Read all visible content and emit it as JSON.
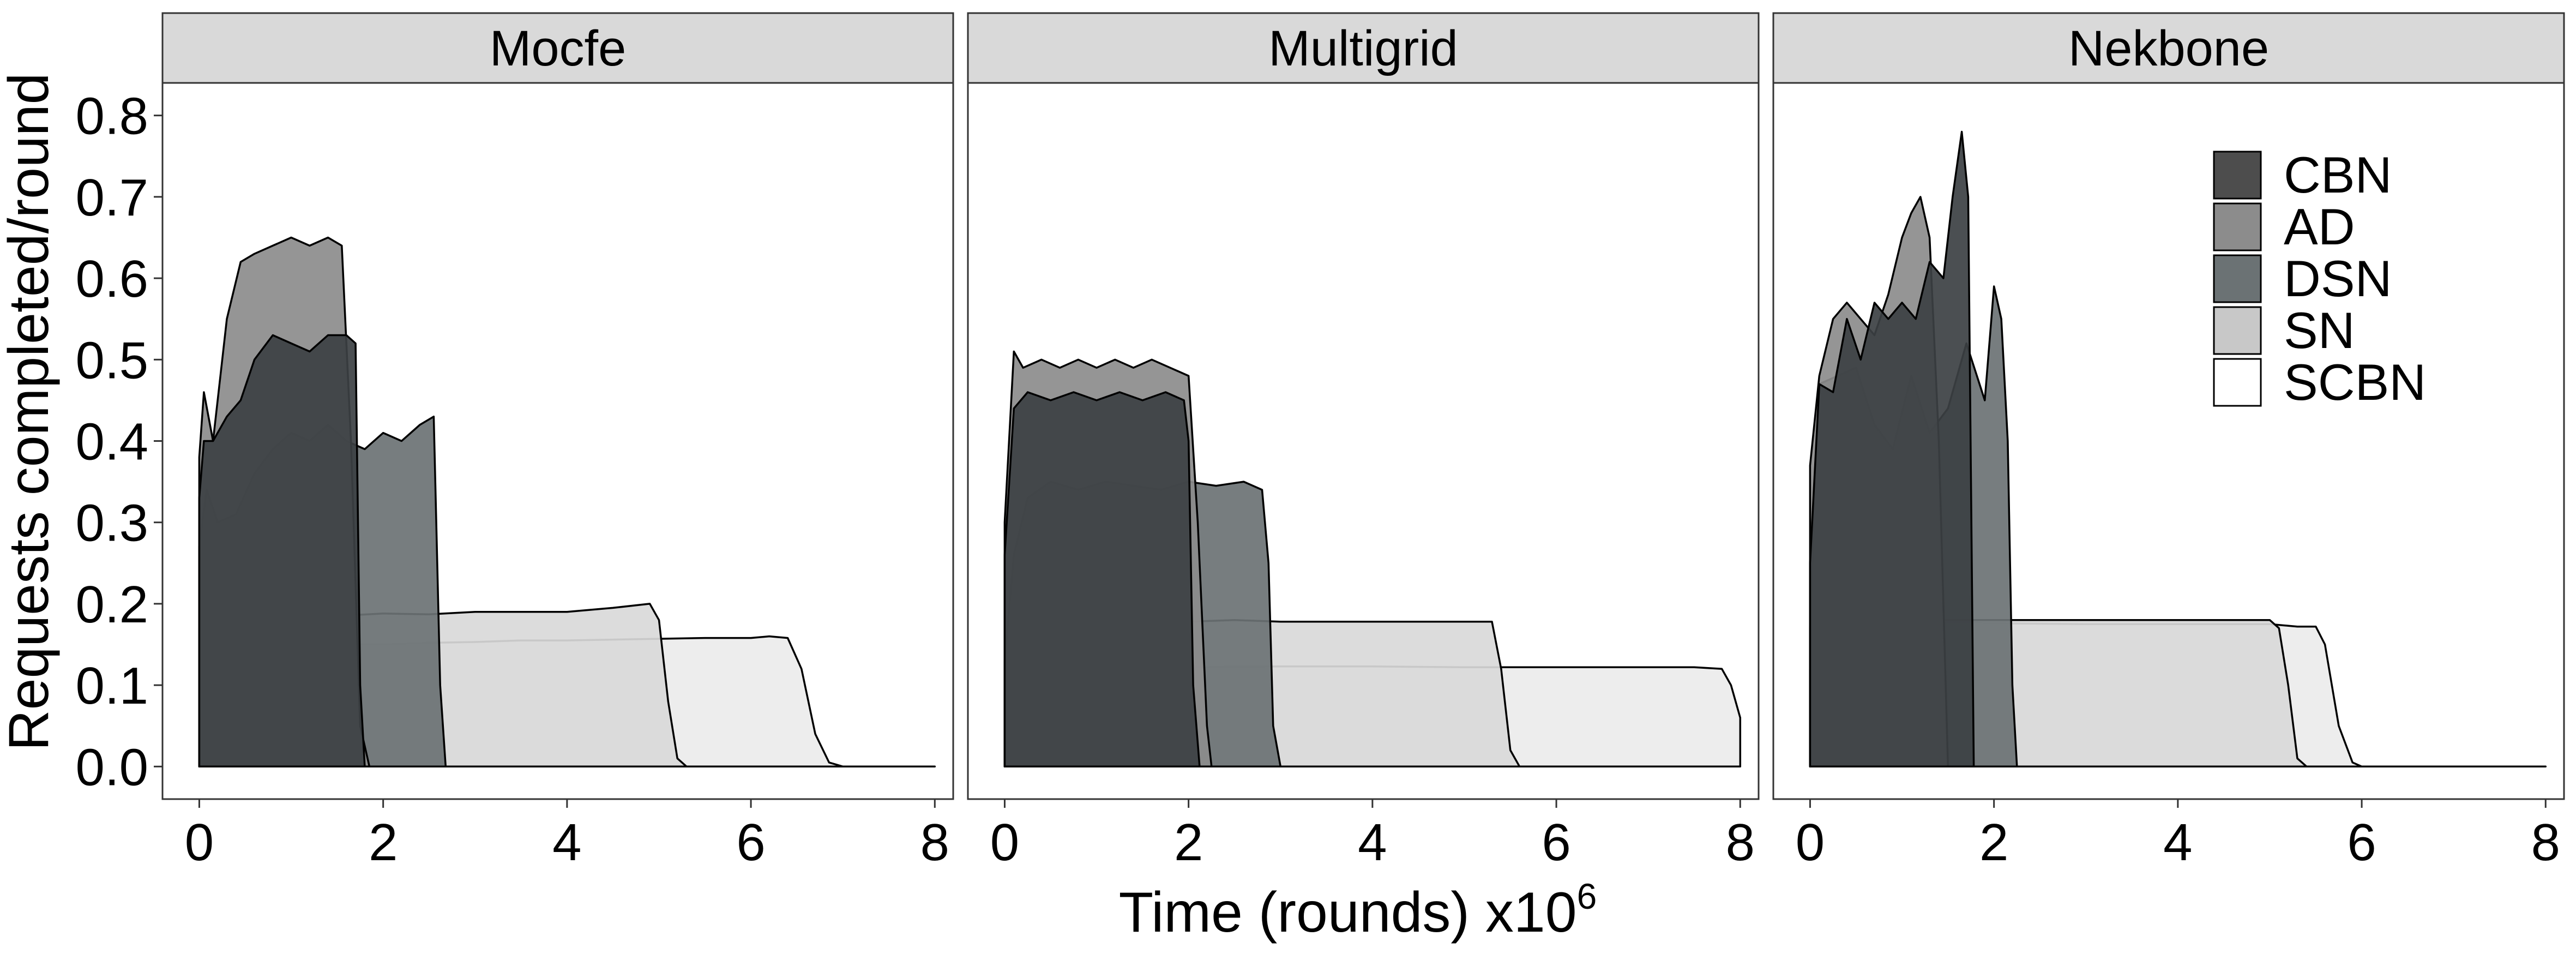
{
  "chart_data": {
    "type": "area",
    "xlabel": "Time (rounds) x10",
    "xlabel_superscript": "6",
    "ylabel": "Requests completed/round",
    "xlim": [
      -0.4,
      8.2
    ],
    "ylim": [
      -0.04,
      0.84
    ],
    "x_ticks": [
      "0",
      "2",
      "4",
      "6",
      "8"
    ],
    "y_ticks": [
      "0.0",
      "0.1",
      "0.2",
      "0.3",
      "0.4",
      "0.5",
      "0.6",
      "0.7",
      "0.8"
    ],
    "grid": false,
    "legend": {
      "placement": "top-right (inside Nekbone panel)",
      "entries": [
        {
          "name": "CBN",
          "fill": "#4d4d4d"
        },
        {
          "name": "AD",
          "fill": "#8c8c8c"
        },
        {
          "name": "DSN",
          "fill": "#6b7274"
        },
        {
          "name": "SN",
          "fill": "#c8c8c8"
        },
        {
          "name": "SCBN",
          "fill": "#ffffff"
        }
      ]
    },
    "panels": [
      {
        "title": "Mocfe",
        "series": [
          {
            "name": "SCBN",
            "fill": "#ebebeb",
            "stroke": "#000000",
            "x": [
              0,
              0.1,
              0.4,
              0.8,
              1.2,
              1.6,
              2,
              2.5,
              3,
              3.5,
              4,
              4.5,
              5,
              5.5,
              6,
              6.2,
              6.4,
              6.55,
              6.7,
              6.85,
              7,
              7.5,
              8
            ],
            "y": [
              0.14,
              0.17,
              0.14,
              0.15,
              0.145,
              0.15,
              0.15,
              0.152,
              0.153,
              0.155,
              0.155,
              0.156,
              0.157,
              0.158,
              0.158,
              0.16,
              0.158,
              0.12,
              0.04,
              0.005,
              0,
              0,
              0
            ]
          },
          {
            "name": "SN",
            "fill": "#d9d9d9",
            "stroke": "#000000",
            "x": [
              0,
              0.1,
              0.3,
              0.6,
              1,
              1.5,
              2,
              2.5,
              3,
              3.5,
              4,
              4.5,
              4.9,
              5.0,
              5.1,
              5.2,
              5.3
            ],
            "y": [
              0.17,
              0.21,
              0.19,
              0.18,
              0.19,
              0.185,
              0.188,
              0.187,
              0.19,
              0.19,
              0.19,
              0.195,
              0.2,
              0.18,
              0.08,
              0.01,
              0
            ]
          },
          {
            "name": "DSN",
            "fill": "#6b7274",
            "stroke": "#000000",
            "x": [
              0,
              0.08,
              0.2,
              0.4,
              0.6,
              0.8,
              1,
              1.2,
              1.4,
              1.6,
              1.8,
              2,
              2.2,
              2.4,
              2.55,
              2.62,
              2.68
            ],
            "y": [
              0.27,
              0.34,
              0.3,
              0.31,
              0.36,
              0.39,
              0.41,
              0.4,
              0.42,
              0.4,
              0.39,
              0.41,
              0.4,
              0.42,
              0.43,
              0.1,
              0
            ]
          },
          {
            "name": "AD",
            "fill": "#8c8c8c",
            "stroke": "#000000",
            "x": [
              0,
              0.05,
              0.15,
              0.3,
              0.45,
              0.6,
              0.8,
              1,
              1.2,
              1.4,
              1.55,
              1.65,
              1.75,
              1.85
            ],
            "y": [
              0.38,
              0.46,
              0.4,
              0.55,
              0.62,
              0.63,
              0.64,
              0.65,
              0.64,
              0.65,
              0.64,
              0.4,
              0.05,
              0
            ]
          },
          {
            "name": "CBN",
            "fill": "#3c4043",
            "stroke": "#000000",
            "x": [
              0,
              0.05,
              0.15,
              0.3,
              0.45,
              0.6,
              0.8,
              1,
              1.2,
              1.4,
              1.6,
              1.7,
              1.75,
              1.8
            ],
            "y": [
              0.33,
              0.4,
              0.4,
              0.43,
              0.45,
              0.5,
              0.53,
              0.52,
              0.51,
              0.53,
              0.53,
              0.52,
              0.1,
              0
            ]
          }
        ]
      },
      {
        "title": "Multigrid",
        "series": [
          {
            "name": "SCBN",
            "fill": "#ebebeb",
            "stroke": "#000000",
            "x": [
              0,
              0.1,
              0.3,
              0.6,
              1,
              2,
              3,
              4,
              5,
              6,
              7,
              7.5,
              7.8,
              7.9,
              8
            ],
            "y": [
              0.07,
              0.11,
              0.12,
              0.122,
              0.122,
              0.122,
              0.123,
              0.123,
              0.122,
              0.122,
              0.122,
              0.122,
              0.12,
              0.1,
              0.06
            ]
          },
          {
            "name": "SN",
            "fill": "#d9d9d9",
            "stroke": "#000000",
            "x": [
              0,
              0.1,
              0.3,
              0.6,
              1,
              1.5,
              2,
              2.5,
              3,
              3.5,
              4,
              4.5,
              5,
              5.3,
              5.4,
              5.5,
              5.6
            ],
            "y": [
              0.09,
              0.17,
              0.185,
              0.18,
              0.178,
              0.18,
              0.178,
              0.18,
              0.178,
              0.178,
              0.178,
              0.178,
              0.178,
              0.178,
              0.12,
              0.02,
              0
            ]
          },
          {
            "name": "DSN",
            "fill": "#6b7274",
            "stroke": "#000000",
            "x": [
              0,
              0.1,
              0.25,
              0.5,
              0.8,
              1.1,
              1.4,
              1.7,
              2,
              2.3,
              2.6,
              2.8,
              2.87,
              2.92,
              3.0
            ],
            "y": [
              0.13,
              0.26,
              0.33,
              0.35,
              0.34,
              0.35,
              0.345,
              0.34,
              0.35,
              0.345,
              0.35,
              0.34,
              0.25,
              0.05,
              0
            ]
          },
          {
            "name": "AD",
            "fill": "#8c8c8c",
            "stroke": "#000000",
            "x": [
              0,
              0.1,
              0.2,
              0.4,
              0.6,
              0.8,
              1,
              1.2,
              1.4,
              1.6,
              1.8,
              2.0,
              2.1,
              2.2,
              2.25
            ],
            "y": [
              0.3,
              0.51,
              0.49,
              0.5,
              0.49,
              0.5,
              0.49,
              0.5,
              0.49,
              0.5,
              0.49,
              0.48,
              0.3,
              0.05,
              0
            ]
          },
          {
            "name": "CBN",
            "fill": "#3c4043",
            "stroke": "#000000",
            "x": [
              0,
              0.1,
              0.25,
              0.5,
              0.75,
              1,
              1.25,
              1.5,
              1.75,
              1.95,
              2.0,
              2.05,
              2.12
            ],
            "y": [
              0.26,
              0.44,
              0.46,
              0.45,
              0.46,
              0.45,
              0.46,
              0.45,
              0.46,
              0.45,
              0.4,
              0.1,
              0
            ]
          }
        ]
      },
      {
        "title": "Nekbone",
        "series": [
          {
            "name": "SCBN",
            "fill": "#ebebeb",
            "stroke": "#000000",
            "x": [
              0,
              0.1,
              0.3,
              0.6,
              1,
              2,
              3,
              4,
              5,
              5.3,
              5.5,
              5.6,
              5.75,
              5.9,
              6.0,
              7,
              8
            ],
            "y": [
              0.1,
              0.18,
              0.185,
              0.18,
              0.18,
              0.176,
              0.175,
              0.175,
              0.175,
              0.172,
              0.172,
              0.15,
              0.05,
              0.005,
              0,
              0,
              0
            ]
          },
          {
            "name": "SN",
            "fill": "#d9d9d9",
            "stroke": "#000000",
            "x": [
              0,
              0.1,
              0.3,
              0.6,
              1,
              1.5,
              2,
              2.5,
              3,
              3.5,
              4,
              4.5,
              5,
              5.1,
              5.2,
              5.3,
              5.4
            ],
            "y": [
              0.12,
              0.18,
              0.19,
              0.19,
              0.18,
              0.18,
              0.18,
              0.18,
              0.18,
              0.18,
              0.18,
              0.18,
              0.18,
              0.17,
              0.1,
              0.01,
              0
            ]
          },
          {
            "name": "DSN",
            "fill": "#6b7274",
            "stroke": "#000000",
            "x": [
              0,
              0.1,
              0.3,
              0.5,
              0.7,
              0.9,
              1.1,
              1.3,
              1.5,
              1.7,
              1.9,
              2.0,
              2.08,
              2.15,
              2.2,
              2.25
            ],
            "y": [
              0.17,
              0.47,
              0.48,
              0.49,
              0.42,
              0.39,
              0.48,
              0.41,
              0.44,
              0.52,
              0.45,
              0.59,
              0.55,
              0.4,
              0.1,
              0
            ]
          },
          {
            "name": "AD",
            "fill": "#8c8c8c",
            "stroke": "#000000",
            "x": [
              0,
              0.1,
              0.25,
              0.4,
              0.55,
              0.7,
              0.85,
              1.0,
              1.1,
              1.2,
              1.3,
              1.4,
              1.5
            ],
            "y": [
              0.37,
              0.48,
              0.55,
              0.57,
              0.55,
              0.53,
              0.58,
              0.65,
              0.68,
              0.7,
              0.65,
              0.4,
              0
            ]
          },
          {
            "name": "CBN",
            "fill": "#3c4043",
            "stroke": "#000000",
            "x": [
              0,
              0.1,
              0.25,
              0.4,
              0.55,
              0.7,
              0.85,
              1,
              1.15,
              1.3,
              1.45,
              1.55,
              1.65,
              1.72,
              1.78
            ],
            "y": [
              0.25,
              0.47,
              0.46,
              0.55,
              0.5,
              0.57,
              0.55,
              0.57,
              0.55,
              0.62,
              0.6,
              0.7,
              0.78,
              0.7,
              0
            ]
          }
        ]
      }
    ]
  }
}
